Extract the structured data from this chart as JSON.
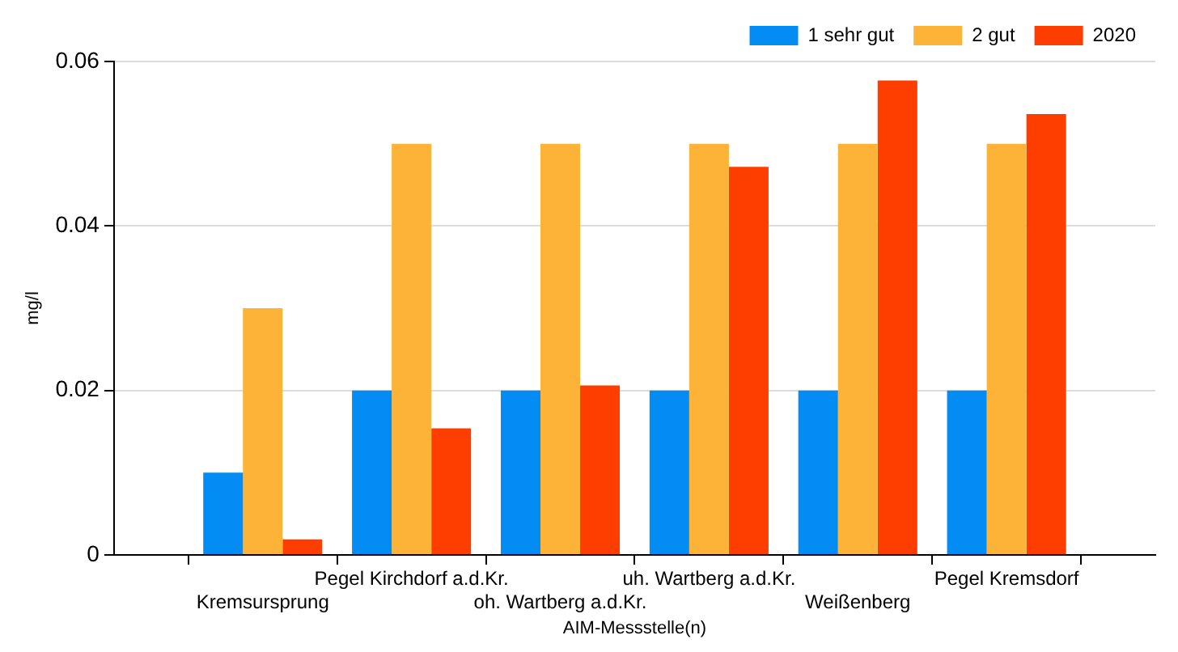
{
  "chart_data": {
    "type": "bar",
    "xlabel": "AIM-Messstelle(n)",
    "ylabel": "mg/l",
    "categories": [
      "Kremsursprung",
      "Pegel Kirchdorf a.d.Kr.",
      "oh. Wartberg a.d.Kr.",
      "uh. Wartberg a.d.Kr.",
      "Weißenberg",
      "Pegel Kremsdorf"
    ],
    "series": [
      {
        "name": "1 sehr gut",
        "color": "#038cf4",
        "values": [
          0.01,
          0.02,
          0.02,
          0.02,
          0.02,
          0.02
        ]
      },
      {
        "name": "2 gut",
        "color": "#fdb338",
        "values": [
          0.03,
          0.05,
          0.05,
          0.05,
          0.05,
          0.05
        ]
      },
      {
        "name": "2020",
        "color": "#fe3e00",
        "values": [
          0.0019,
          0.0154,
          0.0206,
          0.0472,
          0.0577,
          0.0536
        ]
      }
    ],
    "ylim": [
      0,
      0.06
    ],
    "yticks": [
      0,
      0.02,
      0.04,
      0.06
    ],
    "grid": "y",
    "legend": "top right"
  }
}
